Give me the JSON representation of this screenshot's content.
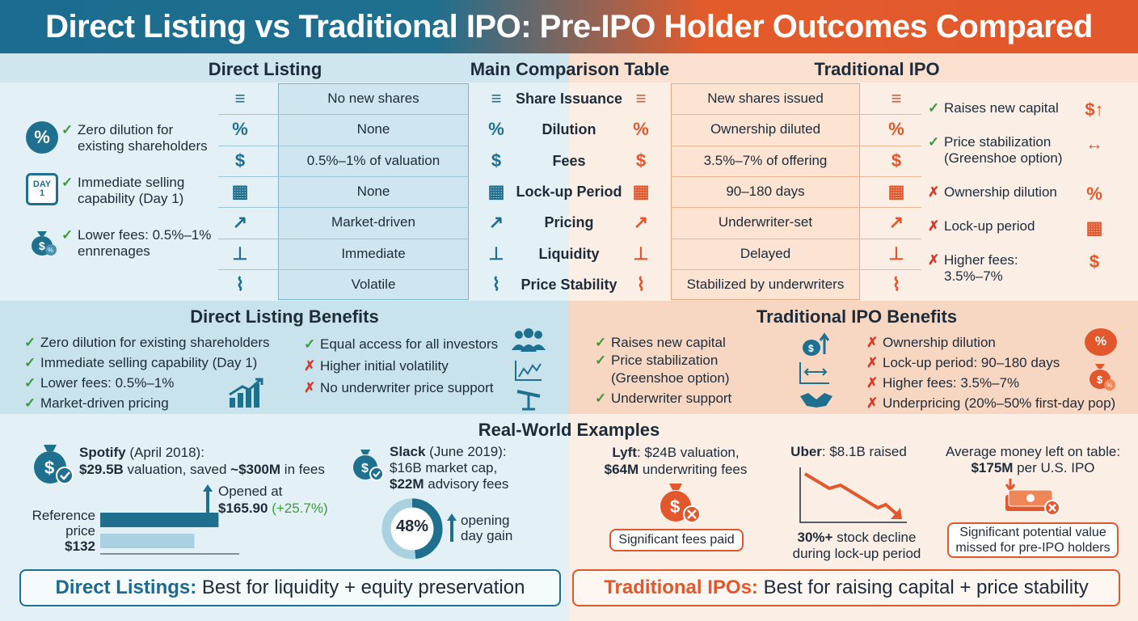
{
  "title": "Direct Listing vs Traditional IPO: Pre-IPO Holder Outcomes Compared",
  "headers": {
    "direct_listing": "Direct Listing",
    "main_table": "Main Comparison Table",
    "traditional_ipo": "Traditional IPO"
  },
  "left_highlights": [
    {
      "mark": "✓",
      "text": "Zero dilution for existing shareholders",
      "line1": "Zero dilution for",
      "line2": "existing shareholders"
    },
    {
      "mark": "✓",
      "text": "Immediate selling capability (Day 1)",
      "line1": "Immediate selling",
      "line2": "capability (Day 1)",
      "icon_text1": "DAY",
      "icon_text2": "1"
    },
    {
      "mark": "✓",
      "text": "Lower fees: 0.5%–1% ennrenages",
      "line1": "Lower fees: 0.5%–1%",
      "line2": "ennrenages"
    }
  ],
  "table": {
    "criteria": [
      "Share Issuance",
      "Dilution",
      "Fees",
      "Lock-up Period",
      "Pricing",
      "Liquidity",
      "Price Stability"
    ],
    "direct_listing": [
      "No new shares",
      "None",
      "0.5%–1% of valuation",
      "None",
      "Market-driven",
      "Immediate",
      "Volatile"
    ],
    "traditional_ipo": [
      "New shares issued",
      "Ownership diluted",
      "3.5%–7% of offering",
      "90–180 days",
      "Underwriter-set",
      "Delayed",
      "Stabilized by underwriters"
    ]
  },
  "right_highlights": [
    {
      "mark": "✓",
      "line1": "Raises new capital",
      "line2": ""
    },
    {
      "mark": "✓",
      "line1": "Price stabilization",
      "line2": "(Greenshoe option)"
    },
    {
      "mark": "✗",
      "line1": "Ownership dilution",
      "line2": ""
    },
    {
      "mark": "✗",
      "line1": "Lock-up period",
      "line2": ""
    },
    {
      "mark": "✗",
      "line1": "Higher fees:",
      "line2": "3.5%–7%"
    }
  ],
  "benefits": {
    "dl_title": "Direct Listing Benefits",
    "ti_title": "Traditional IPO Benefits",
    "dl_col1": [
      {
        "mark": "✓",
        "text": "Zero dilution for existing shareholders"
      },
      {
        "mark": "✓",
        "text": "Immediate selling capability (Day 1)"
      },
      {
        "mark": "✓",
        "text": "Lower fees: 0.5%–1%"
      },
      {
        "mark": "✓",
        "text": "Market-driven pricing"
      }
    ],
    "dl_col2": [
      {
        "mark": "✓",
        "text": "Equal access for all investors"
      },
      {
        "mark": "✗",
        "text": "Higher initial volatility"
      },
      {
        "mark": "✗",
        "text": "No underwriter price support"
      }
    ],
    "ti_col1": [
      {
        "mark": "✓",
        "text": "Raises new capital"
      },
      {
        "mark": "✓",
        "text": "Price stabilization"
      },
      {
        "mark": "",
        "text": "(Greenshoe option)"
      },
      {
        "mark": "✓",
        "text": "Underwriter support"
      }
    ],
    "ti_col2": [
      {
        "mark": "✗",
        "text": "Ownership dilution"
      },
      {
        "mark": "✗",
        "text": "Lock-up period: 90–180 days"
      },
      {
        "mark": "✗",
        "text": "Higher fees: 3.5%–7%"
      },
      {
        "mark": "✗",
        "text": "Underpricing (20%–50% first-day pop)"
      }
    ]
  },
  "examples": {
    "title": "Real-World Examples",
    "spotify": {
      "name": "Spotify",
      "date": " (April 2018):",
      "line2_bold1": "$29.5B",
      "line2_mid": " valuation, saved ",
      "line2_bold2": "~$300M",
      "line2_end": " in fees",
      "opened_label": "Opened at",
      "opened_value": "$165.90",
      "opened_change": "(+25.7%)",
      "ref_label1": "Reference",
      "ref_label2": "price",
      "ref_value": "$132",
      "bar_opened": 165.9,
      "bar_reference": 132
    },
    "slack": {
      "name": "Slack",
      "date": " (June 2019):",
      "line2": "$16B market cap,",
      "line3_bold": "$22M",
      "line3_end": " advisory fees",
      "gain_value": "48%",
      "gain_fraction": 0.48,
      "gain_label1": "opening",
      "gain_label2": "day gain"
    },
    "lyft": {
      "name": "Lyft",
      "line1_end": ": $24B valuation,",
      "line2_bold": "$64M",
      "line2_end": " underwriting fees",
      "box": "Significant fees paid"
    },
    "uber": {
      "name": "Uber",
      "line1_end": ": $8.1B raised",
      "caption_bold": "30%+",
      "caption1_end": " stock decline",
      "caption2": "during lock-up period"
    },
    "average": {
      "line1": "Average money left on table:",
      "line2_bold": "$175M",
      "line2_end": " per U.S. IPO",
      "box1": "Significant potential value",
      "box2": "missed for pre-IPO holders"
    }
  },
  "footer": {
    "dl_bold": "Direct Listings:",
    "dl_rest": " Best for liquidity + equity preservation",
    "ti_bold": "Traditional IPOs:",
    "ti_rest": " Best for raising capital + price stability"
  },
  "colors": {
    "blue": "#1d6a8f",
    "orange": "#e2572b",
    "green": "#3a9b3a",
    "red": "#d7392a"
  }
}
